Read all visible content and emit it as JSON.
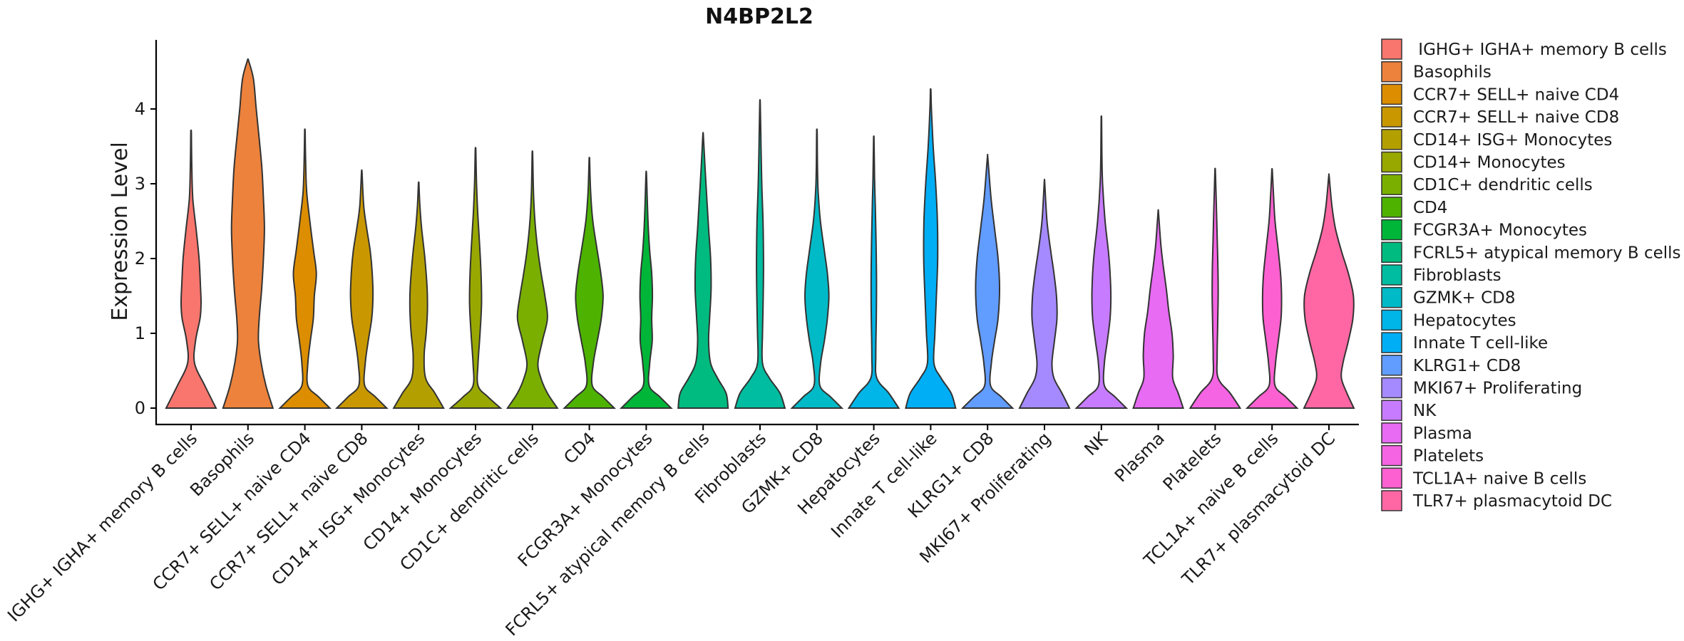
{
  "chart_data": {
    "type": "violin",
    "title": "N4BP2L2",
    "xlabel": "",
    "ylabel": "Expression Level",
    "ylim": [
      -0.2,
      4.9
    ],
    "yticks": [
      0,
      1,
      2,
      3,
      4
    ],
    "legend_position": "right",
    "groups": [
      {
        "name": " IGHG+ IGHA+ memory B cells",
        "label": "IGHG+ IGHA+ memory B cells",
        "color": "#F8766D",
        "max": 3.68,
        "shape": [
          [
            0,
            1
          ],
          [
            0.3,
            0.55
          ],
          [
            0.6,
            0.14
          ],
          [
            0.9,
            0.18
          ],
          [
            1.2,
            0.36
          ],
          [
            1.4,
            0.4
          ],
          [
            1.6,
            0.38
          ],
          [
            2.0,
            0.32
          ],
          [
            2.4,
            0.2
          ],
          [
            2.8,
            0.07
          ],
          [
            3.2,
            0.03
          ],
          [
            3.68,
            0.01
          ]
        ]
      },
      {
        "name": "Basophils",
        "label": "Basophils",
        "color": "#EC823C",
        "max": 4.65,
        "shape": [
          [
            0,
            1
          ],
          [
            0.3,
            0.72
          ],
          [
            0.6,
            0.53
          ],
          [
            0.9,
            0.42
          ],
          [
            1.2,
            0.45
          ],
          [
            1.6,
            0.55
          ],
          [
            2.0,
            0.62
          ],
          [
            2.4,
            0.66
          ],
          [
            2.8,
            0.62
          ],
          [
            3.2,
            0.56
          ],
          [
            3.6,
            0.45
          ],
          [
            4.0,
            0.33
          ],
          [
            4.4,
            0.22
          ],
          [
            4.65,
            0.02
          ]
        ]
      },
      {
        "name": "CCR7+ SELL+ naive CD4",
        "label": "CCR7+ SELL+ naive CD4",
        "color": "#DC8E00",
        "max": 3.7,
        "shape": [
          [
            0,
            1
          ],
          [
            0.15,
            0.55
          ],
          [
            0.3,
            0.12
          ],
          [
            0.6,
            0.12
          ],
          [
            0.9,
            0.22
          ],
          [
            1.2,
            0.34
          ],
          [
            1.5,
            0.38
          ],
          [
            1.8,
            0.46
          ],
          [
            2.1,
            0.35
          ],
          [
            2.5,
            0.2
          ],
          [
            2.9,
            0.07
          ],
          [
            3.3,
            0.03
          ],
          [
            3.7,
            0.01
          ]
        ]
      },
      {
        "name": "CCR7+ SELL+ naive CD8",
        "label": "CCR7+ SELL+ naive CD8",
        "color": "#C99800",
        "max": 3.15,
        "shape": [
          [
            0,
            1
          ],
          [
            0.15,
            0.55
          ],
          [
            0.3,
            0.12
          ],
          [
            0.6,
            0.14
          ],
          [
            0.9,
            0.26
          ],
          [
            1.2,
            0.4
          ],
          [
            1.5,
            0.45
          ],
          [
            1.8,
            0.42
          ],
          [
            2.1,
            0.34
          ],
          [
            2.4,
            0.2
          ],
          [
            2.7,
            0.08
          ],
          [
            3.15,
            0.01
          ]
        ]
      },
      {
        "name": "CD14+ ISG+ Monocytes",
        "label": "CD14+ ISG+ Monocytes",
        "color": "#B3A000",
        "max": 3.0,
        "shape": [
          [
            0,
            1
          ],
          [
            0.2,
            0.65
          ],
          [
            0.4,
            0.28
          ],
          [
            0.7,
            0.22
          ],
          [
            1.0,
            0.3
          ],
          [
            1.3,
            0.35
          ],
          [
            1.6,
            0.34
          ],
          [
            2.0,
            0.25
          ],
          [
            2.4,
            0.12
          ],
          [
            2.7,
            0.05
          ],
          [
            3.0,
            0.01
          ]
        ]
      },
      {
        "name": "CD14+ Monocytes",
        "label": "CD14+ Monocytes",
        "color": "#99A800",
        "max": 3.45,
        "shape": [
          [
            0,
            1
          ],
          [
            0.15,
            0.5
          ],
          [
            0.3,
            0.1
          ],
          [
            0.6,
            0.1
          ],
          [
            1.0,
            0.18
          ],
          [
            1.4,
            0.24
          ],
          [
            1.8,
            0.22
          ],
          [
            2.2,
            0.16
          ],
          [
            2.6,
            0.09
          ],
          [
            3.0,
            0.04
          ],
          [
            3.45,
            0.01
          ]
        ]
      },
      {
        "name": "CD1C+ dendritic cells",
        "label": "CD1C+ dendritic cells",
        "color": "#7AAF00",
        "max": 3.4,
        "shape": [
          [
            0,
            1
          ],
          [
            0.2,
            0.6
          ],
          [
            0.4,
            0.34
          ],
          [
            0.6,
            0.22
          ],
          [
            0.9,
            0.4
          ],
          [
            1.2,
            0.6
          ],
          [
            1.5,
            0.5
          ],
          [
            1.8,
            0.35
          ],
          [
            2.1,
            0.22
          ],
          [
            2.5,
            0.1
          ],
          [
            2.9,
            0.04
          ],
          [
            3.4,
            0.01
          ]
        ]
      },
      {
        "name": "CD4",
        "label": "CD4",
        "color": "#4DB300",
        "max": 3.32,
        "shape": [
          [
            0,
            1
          ],
          [
            0.15,
            0.55
          ],
          [
            0.3,
            0.12
          ],
          [
            0.6,
            0.16
          ],
          [
            0.9,
            0.32
          ],
          [
            1.2,
            0.48
          ],
          [
            1.5,
            0.55
          ],
          [
            1.8,
            0.46
          ],
          [
            2.1,
            0.32
          ],
          [
            2.5,
            0.14
          ],
          [
            2.9,
            0.05
          ],
          [
            3.32,
            0.01
          ]
        ]
      },
      {
        "name": "FCGR3A+ Monocytes",
        "label": "FCGR3A+ Monocytes",
        "color": "#00B639",
        "max": 3.12,
        "shape": [
          [
            0,
            1
          ],
          [
            0.15,
            0.55
          ],
          [
            0.3,
            0.12
          ],
          [
            0.6,
            0.14
          ],
          [
            0.9,
            0.24
          ],
          [
            1.2,
            0.22
          ],
          [
            1.5,
            0.25
          ],
          [
            1.8,
            0.22
          ],
          [
            2.1,
            0.14
          ],
          [
            2.5,
            0.07
          ],
          [
            3.12,
            0.01
          ]
        ]
      },
      {
        "name": "FCRL5+ atypical memory B cells",
        "label": "FCRL5+ atypical memory B cells",
        "color": "#00BB80",
        "max": 3.65,
        "shape": [
          [
            0,
            1
          ],
          [
            0.2,
            0.92
          ],
          [
            0.4,
            0.58
          ],
          [
            0.6,
            0.3
          ],
          [
            0.9,
            0.22
          ],
          [
            1.2,
            0.26
          ],
          [
            1.6,
            0.32
          ],
          [
            2.0,
            0.3
          ],
          [
            2.4,
            0.22
          ],
          [
            2.8,
            0.15
          ],
          [
            3.2,
            0.08
          ],
          [
            3.65,
            0.01
          ]
        ]
      },
      {
        "name": "Fibroblasts",
        "label": "Fibroblasts",
        "color": "#00BCA0",
        "max": 4.08,
        "shape": [
          [
            0,
            1
          ],
          [
            0.2,
            0.8
          ],
          [
            0.4,
            0.38
          ],
          [
            0.6,
            0.1
          ],
          [
            1.0,
            0.1
          ],
          [
            1.5,
            0.13
          ],
          [
            2.0,
            0.14
          ],
          [
            2.5,
            0.12
          ],
          [
            3.0,
            0.07
          ],
          [
            3.5,
            0.04
          ],
          [
            4.08,
            0.01
          ]
        ]
      },
      {
        "name": "GZMK+ CD8",
        "label": "GZMK+ CD8",
        "color": "#00BAC7",
        "max": 3.7,
        "shape": [
          [
            0,
            1
          ],
          [
            0.15,
            0.55
          ],
          [
            0.3,
            0.12
          ],
          [
            0.6,
            0.15
          ],
          [
            0.9,
            0.3
          ],
          [
            1.2,
            0.42
          ],
          [
            1.5,
            0.48
          ],
          [
            1.8,
            0.42
          ],
          [
            2.1,
            0.3
          ],
          [
            2.5,
            0.14
          ],
          [
            2.9,
            0.05
          ],
          [
            3.3,
            0.02
          ],
          [
            3.7,
            0.01
          ]
        ]
      },
      {
        "name": "Hepatocytes",
        "label": "Hepatocytes",
        "color": "#00B5E7",
        "max": 3.6,
        "shape": [
          [
            0,
            1
          ],
          [
            0.2,
            0.6
          ],
          [
            0.4,
            0.12
          ],
          [
            0.7,
            0.08
          ],
          [
            1.2,
            0.1
          ],
          [
            1.7,
            0.11
          ],
          [
            2.2,
            0.09
          ],
          [
            2.7,
            0.06
          ],
          [
            3.1,
            0.03
          ],
          [
            3.6,
            0.01
          ]
        ]
      },
      {
        "name": "Innate T cell-like",
        "label": "Innate T cell-like",
        "color": "#00AEF5",
        "max": 4.25,
        "shape": [
          [
            0,
            1
          ],
          [
            0.2,
            0.82
          ],
          [
            0.4,
            0.42
          ],
          [
            0.6,
            0.13
          ],
          [
            1.0,
            0.17
          ],
          [
            1.5,
            0.23
          ],
          [
            2.0,
            0.28
          ],
          [
            2.5,
            0.27
          ],
          [
            3.0,
            0.2
          ],
          [
            3.5,
            0.1
          ],
          [
            4.0,
            0.03
          ],
          [
            4.25,
            0.01
          ]
        ]
      },
      {
        "name": "KLRG1+ CD8",
        "label": "KLRG1+ CD8",
        "color": "#619CFF",
        "max": 3.35,
        "shape": [
          [
            0,
            1
          ],
          [
            0.15,
            0.55
          ],
          [
            0.3,
            0.12
          ],
          [
            0.6,
            0.15
          ],
          [
            0.9,
            0.28
          ],
          [
            1.2,
            0.42
          ],
          [
            1.6,
            0.48
          ],
          [
            2.0,
            0.42
          ],
          [
            2.4,
            0.28
          ],
          [
            2.8,
            0.14
          ],
          [
            3.35,
            0.01
          ]
        ]
      },
      {
        "name": "MKI67+ Proliferating",
        "label": "MKI67+ Proliferating",
        "color": "#A58AFF",
        "max": 3.02,
        "shape": [
          [
            0,
            1
          ],
          [
            0.2,
            0.7
          ],
          [
            0.4,
            0.38
          ],
          [
            0.6,
            0.3
          ],
          [
            0.9,
            0.4
          ],
          [
            1.2,
            0.5
          ],
          [
            1.5,
            0.48
          ],
          [
            1.8,
            0.38
          ],
          [
            2.1,
            0.25
          ],
          [
            2.5,
            0.1
          ],
          [
            3.02,
            0.01
          ]
        ]
      },
      {
        "name": "NK",
        "label": "NK",
        "color": "#C77CFF",
        "max": 3.87,
        "shape": [
          [
            0,
            1
          ],
          [
            0.15,
            0.55
          ],
          [
            0.3,
            0.12
          ],
          [
            0.6,
            0.12
          ],
          [
            0.9,
            0.24
          ],
          [
            1.2,
            0.35
          ],
          [
            1.5,
            0.38
          ],
          [
            1.8,
            0.35
          ],
          [
            2.1,
            0.28
          ],
          [
            2.5,
            0.15
          ],
          [
            3.0,
            0.05
          ],
          [
            3.4,
            0.02
          ],
          [
            3.87,
            0.01
          ]
        ]
      },
      {
        "name": "Plasma",
        "label": "Plasma",
        "color": "#E76BF3",
        "max": 2.62,
        "shape": [
          [
            0,
            1
          ],
          [
            0.2,
            0.8
          ],
          [
            0.4,
            0.58
          ],
          [
            0.7,
            0.6
          ],
          [
            1.0,
            0.55
          ],
          [
            1.3,
            0.42
          ],
          [
            1.6,
            0.32
          ],
          [
            1.9,
            0.2
          ],
          [
            2.2,
            0.1
          ],
          [
            2.62,
            0.01
          ]
        ]
      },
      {
        "name": "Platelets",
        "label": "Platelets",
        "color": "#F564E3",
        "max": 3.17,
        "shape": [
          [
            0,
            1
          ],
          [
            0.2,
            0.6
          ],
          [
            0.4,
            0.12
          ],
          [
            0.7,
            0.08
          ],
          [
            1.1,
            0.1
          ],
          [
            1.5,
            0.12
          ],
          [
            1.9,
            0.11
          ],
          [
            2.3,
            0.08
          ],
          [
            2.7,
            0.05
          ],
          [
            3.17,
            0.01
          ]
        ]
      },
      {
        "name": "TCL1A+ naive B cells",
        "label": "TCL1A+ naive B cells",
        "color": "#FD61D1",
        "max": 3.18,
        "shape": [
          [
            0,
            1
          ],
          [
            0.15,
            0.55
          ],
          [
            0.3,
            0.12
          ],
          [
            0.6,
            0.14
          ],
          [
            0.9,
            0.25
          ],
          [
            1.2,
            0.36
          ],
          [
            1.5,
            0.38
          ],
          [
            1.8,
            0.34
          ],
          [
            2.1,
            0.25
          ],
          [
            2.5,
            0.12
          ],
          [
            2.9,
            0.05
          ],
          [
            3.18,
            0.01
          ]
        ]
      },
      {
        "name": "TLR7+ plasmacytoid DC",
        "label": "TLR7+ plasmacytoid DC",
        "color": "#FF67A4",
        "max": 3.1,
        "shape": [
          [
            0,
            1
          ],
          [
            0.2,
            0.72
          ],
          [
            0.4,
            0.5
          ],
          [
            0.6,
            0.56
          ],
          [
            0.9,
            0.78
          ],
          [
            1.2,
            0.96
          ],
          [
            1.5,
            0.98
          ],
          [
            1.8,
            0.78
          ],
          [
            2.1,
            0.5
          ],
          [
            2.4,
            0.26
          ],
          [
            2.7,
            0.12
          ],
          [
            3.1,
            0.01
          ]
        ]
      }
    ]
  }
}
